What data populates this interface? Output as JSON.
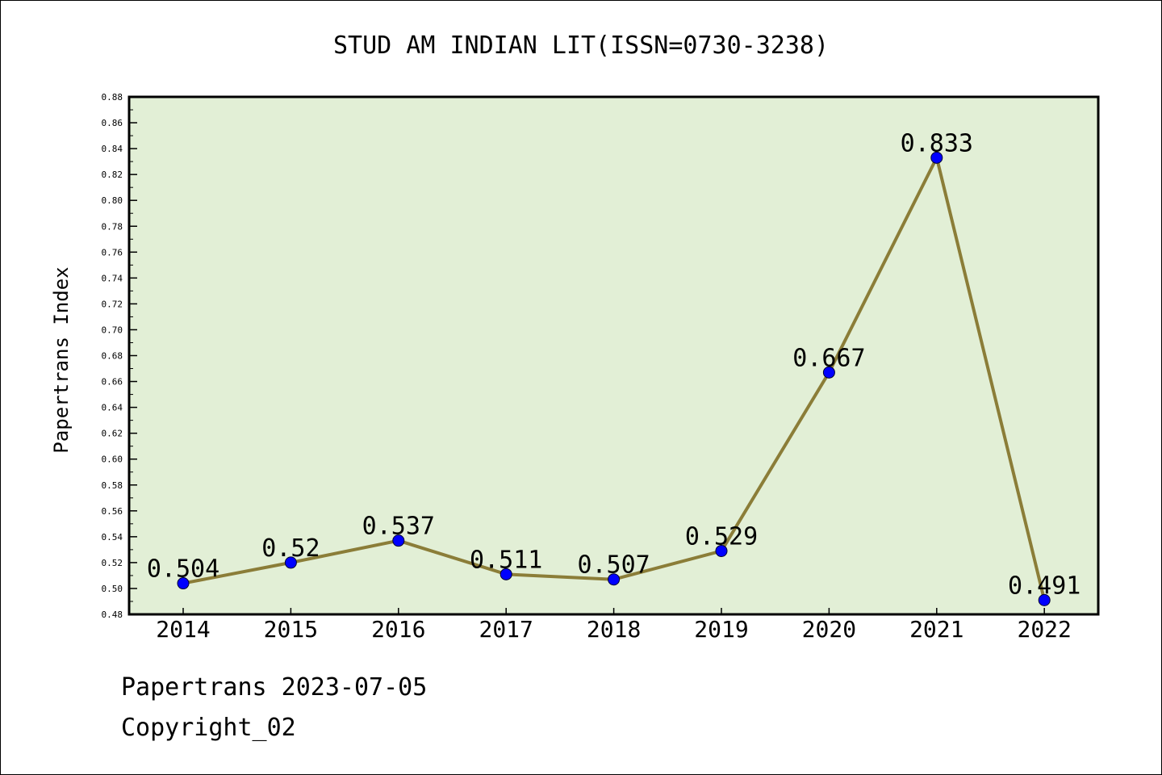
{
  "chart_data": {
    "type": "line",
    "title": "STUD AM INDIAN LIT(ISSN=0730-3238)",
    "xlabel": "",
    "ylabel": "Papertrans Index",
    "categories": [
      "2014",
      "2015",
      "2016",
      "2017",
      "2018",
      "2019",
      "2020",
      "2021",
      "2022"
    ],
    "series": [
      {
        "values": [
          0.504,
          0.52,
          0.537,
          0.511,
          0.507,
          0.529,
          0.667,
          0.833,
          0.491
        ],
        "labels": [
          "0.504",
          "0.52",
          "0.537",
          "0.511",
          "0.507",
          "0.529",
          "0.667",
          "0.833",
          "0.491"
        ]
      }
    ],
    "ylim": [
      0.48,
      0.88
    ],
    "ytick_step": 0.02,
    "yticks": [
      "0.48",
      "0.50",
      "0.52",
      "0.54",
      "0.56",
      "0.58",
      "0.60",
      "0.62",
      "0.64",
      "0.66",
      "0.68",
      "0.70",
      "0.72",
      "0.74",
      "0.76",
      "0.78",
      "0.80",
      "0.82",
      "0.84",
      "0.86",
      "0.88"
    ],
    "grid": false,
    "legend": "none",
    "colors": {
      "plot_background": "#e2efd6",
      "line": "#8b7d38",
      "marker": "#0000ff",
      "axis": "#000000"
    }
  },
  "footer": {
    "line1": "Papertrans 2023-07-05",
    "line2": "Copyright_02"
  }
}
